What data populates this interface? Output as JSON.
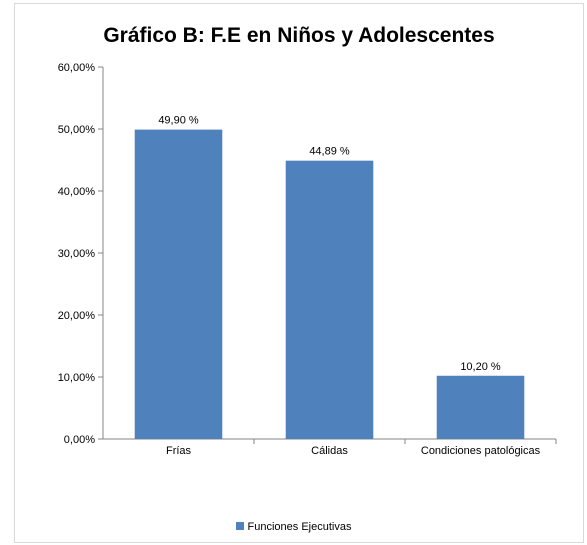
{
  "chart_data": {
    "type": "bar",
    "title": "Gráfico B: F.E en  Niños y Adolescentes",
    "categories": [
      "Frías",
      "Cálidas",
      "Condiciones patológicas"
    ],
    "series": [
      {
        "name": "Funciones Ejecutivas",
        "values": [
          49.9,
          44.89,
          10.2
        ],
        "data_labels": [
          "49,90 %",
          "44,89 %",
          "10,20 %"
        ]
      }
    ],
    "ylim": [
      0,
      60
    ],
    "yticks": [
      0,
      10,
      20,
      30,
      40,
      50,
      60
    ],
    "ytick_labels": [
      "0,00%",
      "10,00%",
      "20,00%",
      "30,00%",
      "40,00%",
      "50,00%",
      "60,00%"
    ],
    "xlabel": "",
    "ylabel": "",
    "grid": false,
    "legend_position": "bottom",
    "bar_color": "#4f81bd"
  }
}
